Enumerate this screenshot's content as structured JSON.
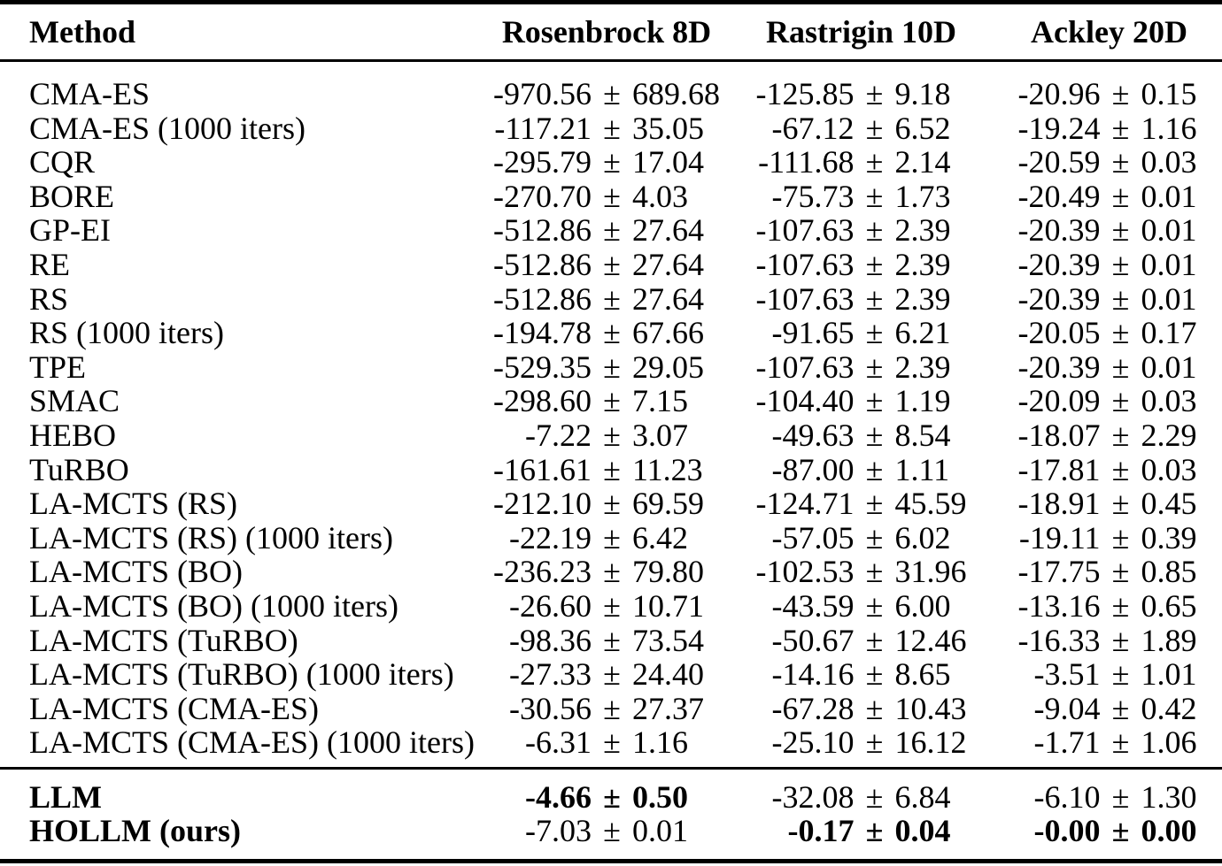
{
  "page": {
    "background": "#ffffff",
    "text_color": "#000000",
    "rule_color": "#000000"
  },
  "table": {
    "pm": "±",
    "columns": [
      {
        "label": "Method"
      },
      {
        "label": "Rosenbrock 8D"
      },
      {
        "label": "Rastrigin 10D"
      },
      {
        "label": "Ackley 20D"
      }
    ],
    "rows": [
      {
        "method": "CMA-ES",
        "values": [
          {
            "mean": "-970.56",
            "std": "689.68"
          },
          {
            "mean": "-125.85",
            "std": "9.18"
          },
          {
            "mean": "-20.96",
            "std": "0.15"
          }
        ]
      },
      {
        "method": "CMA-ES (1000 iters)",
        "values": [
          {
            "mean": "-117.21",
            "std": "35.05"
          },
          {
            "mean": "-67.12",
            "std": "6.52"
          },
          {
            "mean": "-19.24",
            "std": "1.16"
          }
        ]
      },
      {
        "method": "CQR",
        "values": [
          {
            "mean": "-295.79",
            "std": "17.04"
          },
          {
            "mean": "-111.68",
            "std": "2.14"
          },
          {
            "mean": "-20.59",
            "std": "0.03"
          }
        ]
      },
      {
        "method": "BORE",
        "values": [
          {
            "mean": "-270.70",
            "std": "4.03"
          },
          {
            "mean": "-75.73",
            "std": "1.73"
          },
          {
            "mean": "-20.49",
            "std": "0.01"
          }
        ]
      },
      {
        "method": "GP-EI",
        "values": [
          {
            "mean": "-512.86",
            "std": "27.64"
          },
          {
            "mean": "-107.63",
            "std": "2.39"
          },
          {
            "mean": "-20.39",
            "std": "0.01"
          }
        ]
      },
      {
        "method": "RE",
        "values": [
          {
            "mean": "-512.86",
            "std": "27.64"
          },
          {
            "mean": "-107.63",
            "std": "2.39"
          },
          {
            "mean": "-20.39",
            "std": "0.01"
          }
        ]
      },
      {
        "method": "RS",
        "values": [
          {
            "mean": "-512.86",
            "std": "27.64"
          },
          {
            "mean": "-107.63",
            "std": "2.39"
          },
          {
            "mean": "-20.39",
            "std": "0.01"
          }
        ]
      },
      {
        "method": "RS (1000 iters)",
        "values": [
          {
            "mean": "-194.78",
            "std": "67.66"
          },
          {
            "mean": "-91.65",
            "std": "6.21"
          },
          {
            "mean": "-20.05",
            "std": "0.17"
          }
        ]
      },
      {
        "method": "TPE",
        "values": [
          {
            "mean": "-529.35",
            "std": "29.05"
          },
          {
            "mean": "-107.63",
            "std": "2.39"
          },
          {
            "mean": "-20.39",
            "std": "0.01"
          }
        ]
      },
      {
        "method": "SMAC",
        "values": [
          {
            "mean": "-298.60",
            "std": "7.15"
          },
          {
            "mean": "-104.40",
            "std": "1.19"
          },
          {
            "mean": "-20.09",
            "std": "0.03"
          }
        ]
      },
      {
        "method": "HEBO",
        "values": [
          {
            "mean": "-7.22",
            "std": "3.07"
          },
          {
            "mean": "-49.63",
            "std": "8.54"
          },
          {
            "mean": "-18.07",
            "std": "2.29"
          }
        ]
      },
      {
        "method": "TuRBO",
        "values": [
          {
            "mean": "-161.61",
            "std": "11.23"
          },
          {
            "mean": "-87.00",
            "std": "1.11"
          },
          {
            "mean": "-17.81",
            "std": "0.03"
          }
        ]
      },
      {
        "method": "LA-MCTS (RS)",
        "values": [
          {
            "mean": "-212.10",
            "std": "69.59"
          },
          {
            "mean": "-124.71",
            "std": "45.59"
          },
          {
            "mean": "-18.91",
            "std": "0.45"
          }
        ]
      },
      {
        "method": "LA-MCTS (RS) (1000 iters)",
        "values": [
          {
            "mean": "-22.19",
            "std": "6.42"
          },
          {
            "mean": "-57.05",
            "std": "6.02"
          },
          {
            "mean": "-19.11",
            "std": "0.39"
          }
        ]
      },
      {
        "method": "LA-MCTS (BO)",
        "values": [
          {
            "mean": "-236.23",
            "std": "79.80"
          },
          {
            "mean": "-102.53",
            "std": "31.96"
          },
          {
            "mean": "-17.75",
            "std": "0.85"
          }
        ]
      },
      {
        "method": "LA-MCTS (BO) (1000 iters)",
        "values": [
          {
            "mean": "-26.60",
            "std": "10.71"
          },
          {
            "mean": "-43.59",
            "std": "6.00"
          },
          {
            "mean": "-13.16",
            "std": "0.65"
          }
        ]
      },
      {
        "method": "LA-MCTS (TuRBO)",
        "values": [
          {
            "mean": "-98.36",
            "std": "73.54"
          },
          {
            "mean": "-50.67",
            "std": "12.46"
          },
          {
            "mean": "-16.33",
            "std": "1.89"
          }
        ]
      },
      {
        "method": "LA-MCTS (TuRBO) (1000 iters)",
        "values": [
          {
            "mean": "-27.33",
            "std": "24.40"
          },
          {
            "mean": "-14.16",
            "std": "8.65"
          },
          {
            "mean": "-3.51",
            "std": "1.01"
          }
        ]
      },
      {
        "method": "LA-MCTS (CMA-ES)",
        "values": [
          {
            "mean": "-30.56",
            "std": "27.37"
          },
          {
            "mean": "-67.28",
            "std": "10.43"
          },
          {
            "mean": "-9.04",
            "std": "0.42"
          }
        ]
      },
      {
        "method": "LA-MCTS (CMA-ES) (1000 iters)",
        "values": [
          {
            "mean": "-6.31",
            "std": "1.16"
          },
          {
            "mean": "-25.10",
            "std": "16.12"
          },
          {
            "mean": "-1.71",
            "std": "1.06"
          }
        ]
      }
    ],
    "footer_rows": [
      {
        "method": "LLM",
        "method_bold": true,
        "values": [
          {
            "mean": "-4.66",
            "std": "0.50",
            "bold": true
          },
          {
            "mean": "-32.08",
            "std": "6.84",
            "bold": false
          },
          {
            "mean": "-6.10",
            "std": "1.30",
            "bold": false
          }
        ]
      },
      {
        "method": "HOLLM (ours)",
        "method_bold": true,
        "values": [
          {
            "mean": "-7.03",
            "std": "0.01",
            "bold": false
          },
          {
            "mean": "-0.17",
            "std": "0.04",
            "bold": true
          },
          {
            "mean": "-0.00",
            "std": "0.00",
            "bold": true
          }
        ]
      }
    ]
  }
}
